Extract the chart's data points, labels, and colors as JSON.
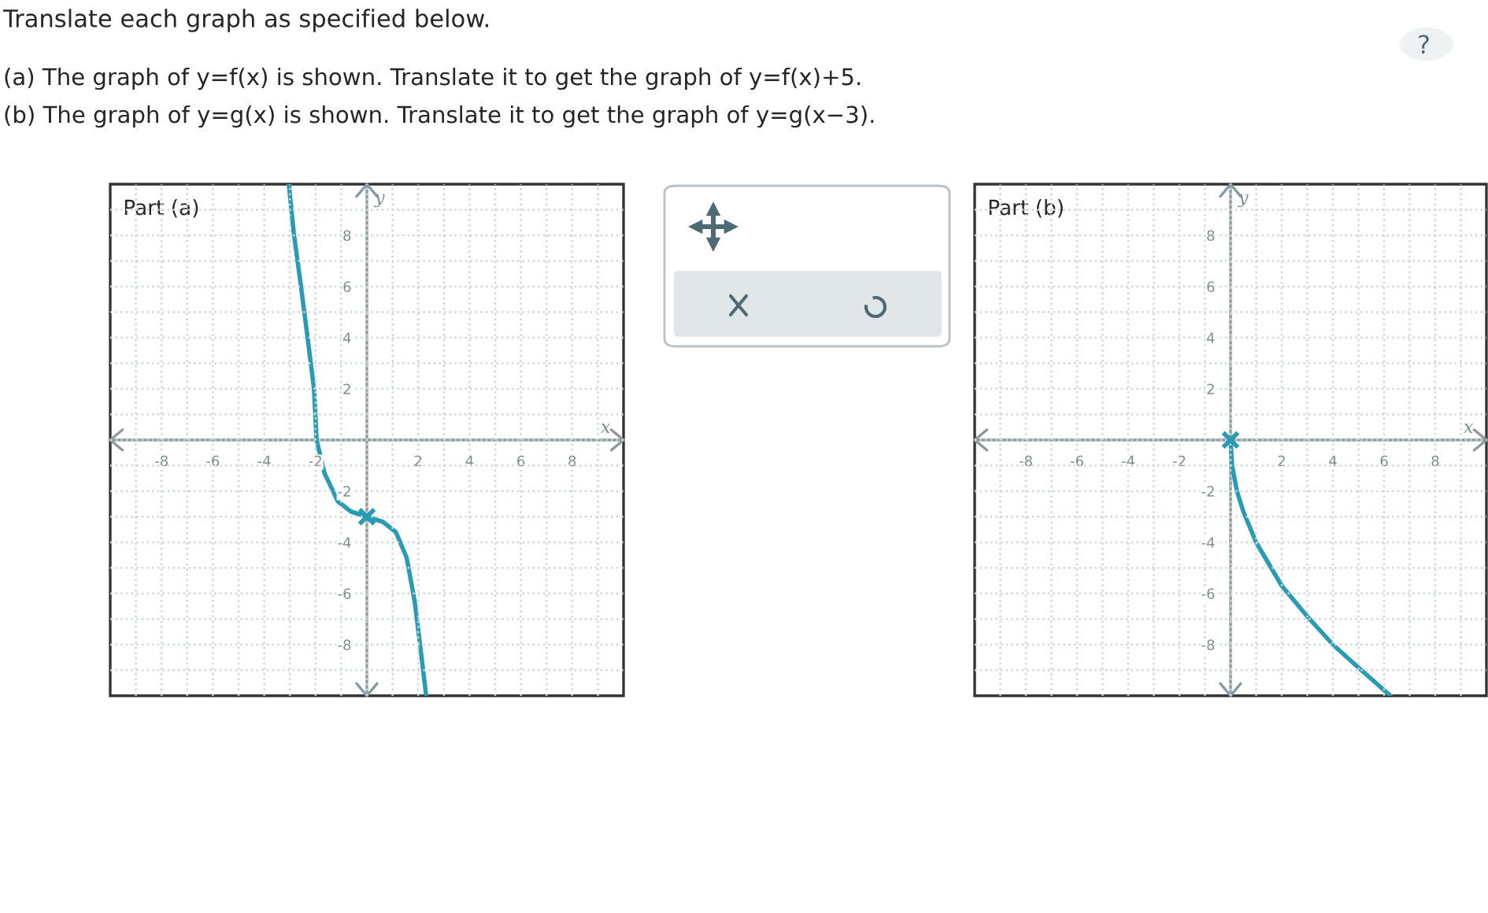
{
  "chart_data": [
    {
      "type": "line",
      "title": "Part (a)",
      "xlabel": "x",
      "ylabel": "y",
      "annotations": [
        "Translate each graph as specified below.",
        "(a) The graph of y=f(x) is shown. Translate it to get the graph of y=f(x)+5.",
        "(b) The graph of y=g(x) is shown. Translate it to get the graph of y=g(x−3)."
      ],
      "series": [
        {
          "color": "#2a9bb5",
          "x": [
            -3.04,
            -2.85,
            -2.58,
            -2.31,
            -2.06,
            -1.96,
            -1.65,
            -1.13,
            -0.62,
            0,
            0.62,
            1.13,
            1.55,
            1.86,
            2.06,
            2.31
          ],
          "values": [
            10,
            8.1,
            6.1,
            4.0,
            2.0,
            0,
            -1.3,
            -2.4,
            -2.8,
            -3,
            -3.2,
            -3.6,
            -4.6,
            -6.3,
            -7.9,
            -10
          ]
        },
        {
          "type": "scatter",
          "color": "#2a9bb5",
          "marker": "cross",
          "x": [
            0
          ],
          "values": [
            -3
          ]
        }
      ],
      "xlim": [
        -10,
        10
      ],
      "ylim": [
        -10,
        10
      ],
      "xticks": [
        {
          "value": -9,
          "label": null
        },
        -8,
        {
          "value": -7,
          "label": null
        },
        -6,
        {
          "value": -5,
          "label": null
        },
        -4,
        {
          "value": -3,
          "label": null
        },
        -2,
        {
          "value": -1,
          "label": null
        },
        {
          "value": 0,
          "label": null
        },
        {
          "value": 1,
          "label": null
        },
        2,
        {
          "value": 3,
          "label": null
        },
        4,
        {
          "value": 5,
          "label": null
        },
        6,
        {
          "value": 7,
          "label": null
        },
        8,
        {
          "value": 9,
          "label": null
        }
      ],
      "yticks": [
        {
          "value": -9,
          "label": null
        },
        -8,
        {
          "value": -7,
          "label": null
        },
        -6,
        {
          "value": -5,
          "label": null
        },
        -4,
        {
          "value": -3,
          "label": null
        },
        -2,
        {
          "value": -1,
          "label": null
        },
        {
          "value": 0,
          "label": null
        },
        {
          "value": 1,
          "label": null
        },
        2,
        {
          "value": 3,
          "label": null
        },
        4,
        {
          "value": 5,
          "label": null
        },
        6,
        {
          "value": 7,
          "label": null
        },
        8,
        {
          "value": 9,
          "label": null
        }
      ],
      "grid": true
    },
    {
      "type": "line",
      "title": "Part (b)",
      "xlabel": "x",
      "ylabel": "y",
      "series": [
        {
          "color": "#2a9bb5",
          "x": [
            0,
            0.06,
            0.25,
            0.5,
            1,
            2,
            3,
            4,
            5,
            6.25
          ],
          "values": [
            0,
            -1,
            -2,
            -2.8,
            -4,
            -5.7,
            -6.9,
            -8,
            -8.9,
            -10
          ]
        },
        {
          "type": "scatter",
          "color": "#2a9bb5",
          "marker": "cross",
          "x": [
            0
          ],
          "values": [
            0
          ]
        }
      ],
      "xlim": [
        -10,
        10
      ],
      "ylim": [
        -10,
        10
      ],
      "xticks": [
        {
          "value": -9,
          "label": null
        },
        -8,
        {
          "value": -7,
          "label": null
        },
        -6,
        {
          "value": -5,
          "label": null
        },
        -4,
        {
          "value": -3,
          "label": null
        },
        -2,
        {
          "value": -1,
          "label": null
        },
        {
          "value": 0,
          "label": null
        },
        {
          "value": 1,
          "label": null
        },
        2,
        {
          "value": 3,
          "label": null
        },
        4,
        {
          "value": 5,
          "label": null
        },
        6,
        {
          "value": 7,
          "label": null
        },
        8,
        {
          "value": 9,
          "label": null
        }
      ],
      "yticks": [
        {
          "value": -9,
          "label": null
        },
        -8,
        {
          "value": -7,
          "label": null
        },
        -6,
        {
          "value": -5,
          "label": null
        },
        -4,
        {
          "value": -3,
          "label": null
        },
        -2,
        {
          "value": -1,
          "label": null
        },
        {
          "value": 0,
          "label": null
        },
        {
          "value": 1,
          "label": null
        },
        2,
        {
          "value": 3,
          "label": null
        },
        4,
        {
          "value": 5,
          "label": null
        },
        6,
        {
          "value": 7,
          "label": null
        },
        8,
        {
          "value": 9,
          "label": null
        }
      ],
      "grid": true
    }
  ]
}
